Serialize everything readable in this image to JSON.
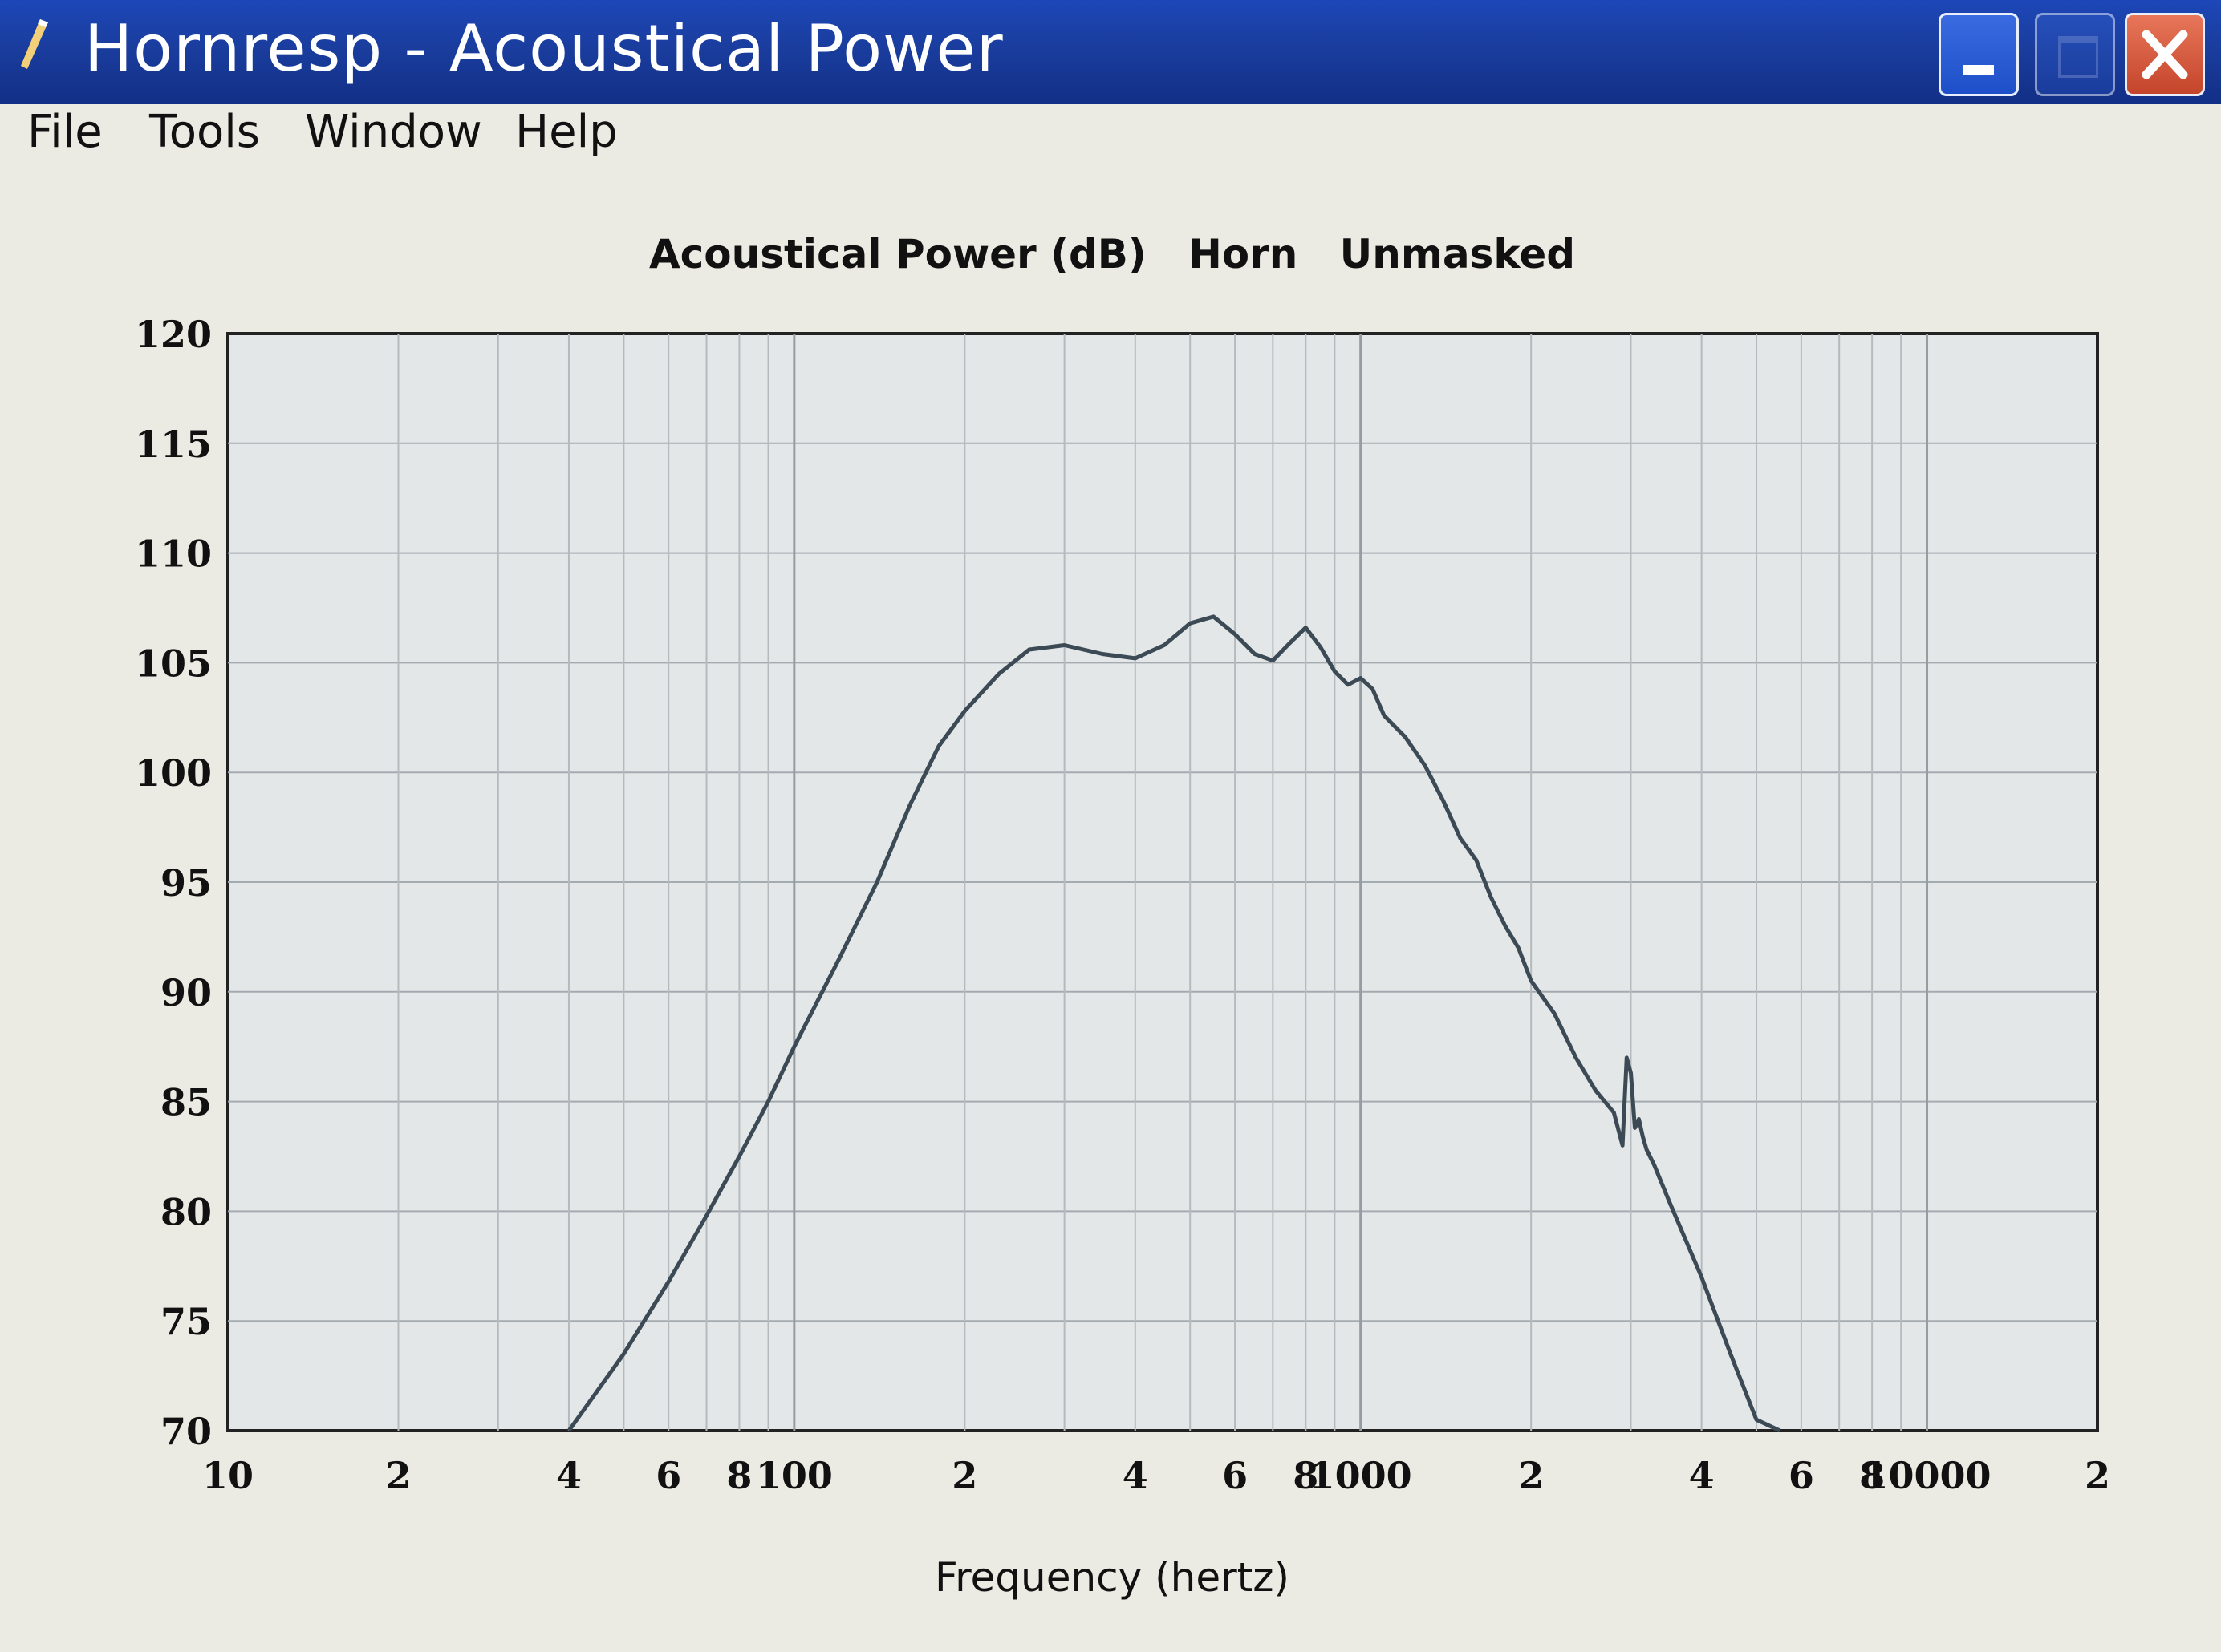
{
  "window": {
    "title": "Hornresp - Acoustical Power",
    "menu": [
      "File",
      "Tools",
      "Window",
      "Help"
    ]
  },
  "colors": {
    "titlebar": "#1a3d9e",
    "plot_background": "#e4e7e8",
    "curve": "#3c4a55",
    "grid": "#a4abb0"
  },
  "chart_data": {
    "type": "line",
    "title": "Acoustical Power (dB)   Horn   Unmasked",
    "xlabel": "Frequency (hertz)",
    "ylabel": "",
    "xscale": "log",
    "xlim": [
      10,
      20000
    ],
    "ylim": [
      70,
      120
    ],
    "ytick_labels": [
      "120",
      "115",
      "110",
      "105",
      "100",
      "95",
      "90",
      "85",
      "80",
      "75",
      "70"
    ],
    "xtick_labels": [
      {
        "x": 10,
        "label": "10"
      },
      {
        "x": 20,
        "label": "2"
      },
      {
        "x": 40,
        "label": "4"
      },
      {
        "x": 60,
        "label": "6"
      },
      {
        "x": 80,
        "label": "8"
      },
      {
        "x": 100,
        "label": "100"
      },
      {
        "x": 200,
        "label": "2"
      },
      {
        "x": 400,
        "label": "4"
      },
      {
        "x": 600,
        "label": "6"
      },
      {
        "x": 800,
        "label": "8"
      },
      {
        "x": 1000,
        "label": "1000"
      },
      {
        "x": 2000,
        "label": "2"
      },
      {
        "x": 4000,
        "label": "4"
      },
      {
        "x": 6000,
        "label": "6"
      },
      {
        "x": 8000,
        "label": "8"
      },
      {
        "x": 10000,
        "label": "10000"
      },
      {
        "x": 20000,
        "label": "2"
      }
    ],
    "grid": true,
    "series": [
      {
        "x": [
          40,
          50,
          60,
          70,
          80,
          90,
          100,
          120,
          140,
          160,
          180,
          200,
          230,
          260,
          300,
          350,
          400,
          450,
          500,
          550,
          600,
          650,
          700,
          750,
          800,
          850,
          900,
          950,
          1000,
          1050,
          1100,
          1200,
          1300,
          1400,
          1500,
          1600,
          1700,
          1800,
          1900,
          2000,
          2200,
          2400,
          2600,
          2800,
          2900,
          2950,
          3000,
          3050,
          3100,
          3150,
          3200,
          3300,
          3500,
          4000,
          4500,
          5000,
          5500
        ],
        "y": [
          70,
          73.5,
          76.8,
          79.8,
          82.5,
          85.0,
          87.5,
          91.5,
          95.0,
          98.5,
          101.2,
          102.8,
          104.5,
          105.6,
          105.8,
          105.4,
          105.2,
          105.8,
          106.8,
          107.1,
          106.3,
          105.4,
          105.1,
          105.9,
          106.6,
          105.7,
          104.6,
          104.0,
          104.3,
          103.8,
          102.6,
          101.6,
          100.3,
          98.7,
          97.0,
          96.0,
          94.3,
          93.0,
          92.0,
          90.5,
          89.0,
          87.0,
          85.5,
          84.5,
          83.0,
          87.0,
          86.3,
          83.8,
          84.2,
          83.4,
          82.8,
          82.1,
          80.5,
          77.0,
          73.5,
          70.5,
          68.0
        ]
      }
    ]
  }
}
